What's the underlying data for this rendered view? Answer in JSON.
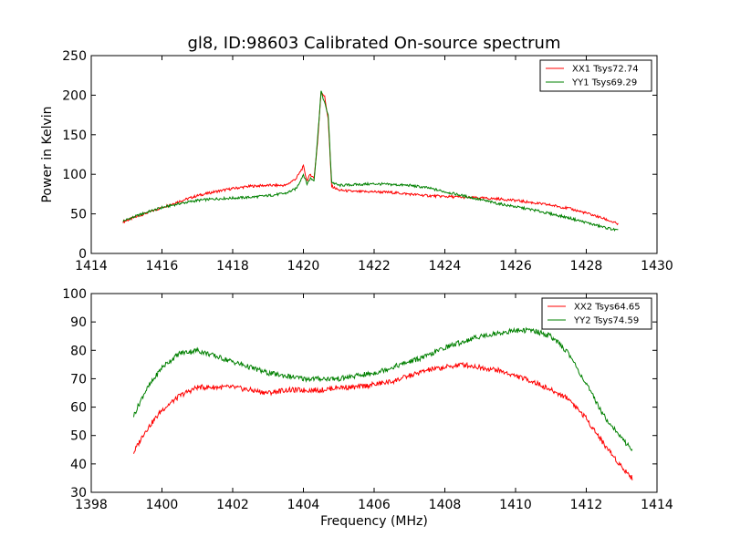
{
  "figure": {
    "title": "gl8, ID:98603 Calibrated On-source spectrum"
  },
  "chart_data": [
    {
      "type": "line",
      "title": "gl8, ID:98603 Calibrated On-source spectrum",
      "xlabel": "",
      "ylabel": "Power in Kelvin",
      "xlim": [
        1414,
        1430
      ],
      "ylim": [
        0,
        250
      ],
      "xticks": [
        1414,
        1416,
        1418,
        1420,
        1422,
        1424,
        1426,
        1428,
        1430
      ],
      "yticks": [
        0,
        50,
        100,
        150,
        200,
        250
      ],
      "grid": false,
      "legend": "top-right",
      "series": [
        {
          "name": "XX1 Tsys72.74",
          "color": "#ff0000",
          "x": [
            1414.9,
            1415.5,
            1416.0,
            1416.5,
            1417.0,
            1417.5,
            1418.0,
            1418.5,
            1419.0,
            1419.5,
            1419.8,
            1420.0,
            1420.1,
            1420.2,
            1420.3,
            1420.4,
            1420.5,
            1420.6,
            1420.7,
            1420.8,
            1421.0,
            1421.5,
            1422.0,
            1422.5,
            1423.0,
            1423.5,
            1424.0,
            1424.5,
            1425.0,
            1425.5,
            1426.0,
            1426.5,
            1427.0,
            1427.5,
            1428.0,
            1428.5,
            1428.9
          ],
          "y": [
            40,
            50,
            58,
            66,
            73,
            78,
            82,
            85,
            86,
            86,
            95,
            110,
            92,
            100,
            95,
            140,
            205,
            198,
            170,
            85,
            80,
            78,
            78,
            77,
            75,
            73,
            72,
            71,
            70,
            69,
            67,
            64,
            61,
            57,
            51,
            44,
            37
          ]
        },
        {
          "name": "YY1 Tsys69.29",
          "color": "#008000",
          "x": [
            1414.9,
            1415.5,
            1416.0,
            1416.5,
            1417.0,
            1417.5,
            1418.0,
            1418.5,
            1419.0,
            1419.5,
            1419.8,
            1420.0,
            1420.1,
            1420.2,
            1420.3,
            1420.4,
            1420.5,
            1420.6,
            1420.7,
            1420.8,
            1421.0,
            1421.5,
            1422.0,
            1422.5,
            1423.0,
            1423.5,
            1424.0,
            1424.5,
            1425.0,
            1425.5,
            1426.0,
            1426.5,
            1427.0,
            1427.5,
            1428.0,
            1428.5,
            1428.9
          ],
          "y": [
            41,
            51,
            58,
            63,
            67,
            69,
            70,
            71,
            73,
            76,
            82,
            100,
            88,
            95,
            92,
            145,
            205,
            190,
            175,
            90,
            86,
            87,
            88,
            87,
            86,
            83,
            78,
            73,
            68,
            63,
            59,
            55,
            50,
            45,
            39,
            33,
            29
          ]
        }
      ]
    },
    {
      "type": "line",
      "title": "",
      "xlabel": "Frequency (MHz)",
      "ylabel": "",
      "xlim": [
        1398,
        1414
      ],
      "ylim": [
        30,
        100
      ],
      "xticks": [
        1398,
        1400,
        1402,
        1404,
        1406,
        1408,
        1410,
        1412,
        1414
      ],
      "yticks": [
        30,
        40,
        50,
        60,
        70,
        80,
        90,
        100
      ],
      "grid": false,
      "legend": "top-right",
      "series": [
        {
          "name": "XX2 Tsys64.65",
          "color": "#ff0000",
          "x": [
            1399.2,
            1399.5,
            1400.0,
            1400.5,
            1401.0,
            1401.5,
            1402.0,
            1402.5,
            1403.0,
            1403.5,
            1404.0,
            1404.5,
            1405.0,
            1405.5,
            1406.0,
            1406.5,
            1407.0,
            1407.5,
            1408.0,
            1408.5,
            1409.0,
            1409.5,
            1410.0,
            1410.5,
            1411.0,
            1411.5,
            1412.0,
            1412.5,
            1413.0,
            1413.3
          ],
          "y": [
            44,
            51,
            59,
            64,
            67,
            67,
            67,
            66,
            65,
            66,
            66,
            66,
            67,
            67,
            68,
            69,
            71,
            73,
            74,
            75,
            74,
            73,
            71,
            69,
            66,
            63,
            56,
            47,
            39,
            35
          ]
        },
        {
          "name": "YY2 Tsys74.59",
          "color": "#008000",
          "x": [
            1399.2,
            1399.5,
            1400.0,
            1400.5,
            1401.0,
            1401.5,
            1402.0,
            1402.5,
            1403.0,
            1403.5,
            1404.0,
            1404.5,
            1405.0,
            1405.5,
            1406.0,
            1406.5,
            1407.0,
            1407.5,
            1408.0,
            1408.5,
            1409.0,
            1409.5,
            1410.0,
            1410.5,
            1411.0,
            1411.5,
            1412.0,
            1412.5,
            1413.0,
            1413.3
          ],
          "y": [
            57,
            65,
            74,
            79,
            80,
            78,
            76,
            74,
            72,
            71,
            70,
            70,
            70,
            71,
            72,
            74,
            76,
            78,
            81,
            83,
            85,
            86,
            87,
            87,
            85,
            79,
            68,
            57,
            49,
            45
          ]
        }
      ]
    }
  ]
}
